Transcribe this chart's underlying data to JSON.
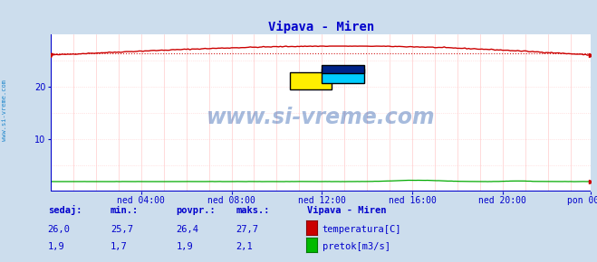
{
  "title": "Vipava - Miren",
  "bg_color": "#ccdded",
  "plot_bg_color": "#ffffff",
  "grid_color": "#ffcccc",
  "x_labels": [
    "ned 04:00",
    "ned 08:00",
    "ned 12:00",
    "ned 16:00",
    "ned 20:00",
    "pon 00:00"
  ],
  "x_tick_positions": [
    48,
    96,
    144,
    192,
    240,
    287
  ],
  "n_points": 288,
  "ylim": [
    0,
    30
  ],
  "yticks": [
    10,
    20
  ],
  "temp_color": "#cc0000",
  "flow_color": "#00aa00",
  "blue_line_color": "#0000cc",
  "watermark_text": "www.si-vreme.com",
  "watermark_color": "#2255aa",
  "sidebar_text": "www.si-vreme.com",
  "sidebar_color": "#2288cc",
  "title_color": "#0000cc",
  "title_fontsize": 10,
  "label_color": "#0000cc",
  "label_fontsize": 7,
  "stats_headers": [
    "sedaj:",
    "min.:",
    "povpr.:",
    "maks.:"
  ],
  "stats_temp": [
    "26,0",
    "25,7",
    "26,4",
    "27,7"
  ],
  "stats_flow": [
    "1,9",
    "1,7",
    "1,9",
    "2,1"
  ],
  "legend_title": "Vipava - Miren",
  "legend_temp_label": "temperatura[C]",
  "legend_flow_label": "pretok[m3/s]",
  "logo_yellow": "#ffee00",
  "logo_cyan": "#00ccff",
  "logo_dark": "#002288"
}
